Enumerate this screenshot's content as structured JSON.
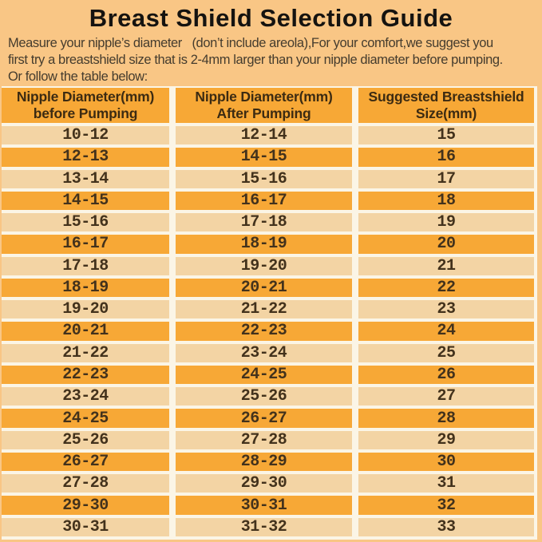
{
  "title": "Breast Shield Selection Guide",
  "intro": {
    "line1": "Measure your nipple’s diameter   (don’t include areola),For your comfort,we suggest you",
    "line2": "first try a breastshield size that is 2-4mm larger than your nipple diameter before pumping.",
    "line3": "Or follow the table below:"
  },
  "colors": {
    "page_bg": "#F9C685",
    "row_orange": "#F7A836",
    "row_light": "#F3D4A4",
    "separator": "#FBF5E6",
    "cell_text": "#43321C"
  },
  "table": {
    "headers": [
      {
        "line1": "Nipple Diameter(mm)",
        "line2": "before Pumping"
      },
      {
        "line1": "Nipple Diameter(mm)",
        "line2": "After Pumping"
      },
      {
        "line1": "Suggested Breastshield",
        "line2": "Size(mm)"
      }
    ],
    "rows": [
      [
        "10-12",
        "12-14",
        "15"
      ],
      [
        "12-13",
        "14-15",
        "16"
      ],
      [
        "13-14",
        "15-16",
        "17"
      ],
      [
        "14-15",
        "16-17",
        "18"
      ],
      [
        "15-16",
        "17-18",
        "19"
      ],
      [
        "16-17",
        "18-19",
        "20"
      ],
      [
        "17-18",
        "19-20",
        "21"
      ],
      [
        "18-19",
        "20-21",
        "22"
      ],
      [
        "19-20",
        "21-22",
        "23"
      ],
      [
        "20-21",
        "22-23",
        "24"
      ],
      [
        "21-22",
        "23-24",
        "25"
      ],
      [
        "22-23",
        "24-25",
        "26"
      ],
      [
        "23-24",
        "25-26",
        "27"
      ],
      [
        "24-25",
        "26-27",
        "28"
      ],
      [
        "25-26",
        "27-28",
        "29"
      ],
      [
        "26-27",
        "28-29",
        "30"
      ],
      [
        "27-28",
        "29-30",
        "31"
      ],
      [
        "29-30",
        "30-31",
        "32"
      ],
      [
        "30-31",
        "31-32",
        "33"
      ]
    ]
  }
}
